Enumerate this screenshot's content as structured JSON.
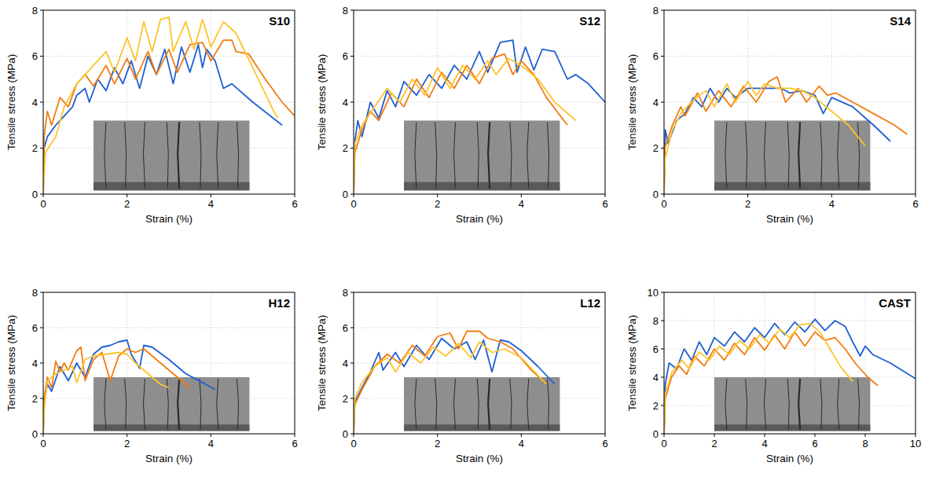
{
  "chart_data": [
    {
      "type": "line",
      "title": "S10",
      "x_label": "Strain (%)",
      "y_label": "Tensile stress (MPa)",
      "xlim": [
        0,
        6
      ],
      "ylim": [
        0,
        8
      ],
      "xticks": [
        0,
        2,
        4,
        6
      ],
      "yticks": [
        0,
        2,
        4,
        6,
        8
      ],
      "grid": true,
      "series": [
        {
          "color": "#1f5fd1",
          "x": [
            0,
            0.02,
            0.1,
            0.3,
            0.5,
            0.7,
            0.8,
            1,
            1.1,
            1.3,
            1.5,
            1.7,
            1.9,
            2.1,
            2.3,
            2.5,
            2.7,
            2.9,
            3.1,
            3.3,
            3.5,
            3.7,
            3.8,
            3.9,
            4.1,
            4.3,
            4.5,
            5,
            5.7
          ],
          "values": [
            0,
            2.0,
            2.5,
            3.0,
            3.4,
            3.8,
            4.3,
            4.6,
            4.0,
            5.0,
            4.5,
            5.5,
            4.8,
            5.8,
            4.6,
            6.0,
            5.2,
            6.3,
            4.8,
            6.4,
            5.3,
            6.5,
            5.5,
            6.3,
            5.8,
            4.6,
            4.8,
            4.0,
            3.0
          ]
        },
        {
          "color": "#f27b11",
          "x": [
            0,
            0.02,
            0.1,
            0.2,
            0.4,
            0.6,
            0.8,
            1,
            1.2,
            1.5,
            1.7,
            2,
            2.2,
            2.5,
            2.7,
            3,
            3.2,
            3.5,
            3.8,
            4,
            4.3,
            4.5,
            4.6,
            4.9,
            5.3,
            5.7,
            6
          ],
          "values": [
            0,
            2.5,
            3.6,
            3.0,
            4.2,
            3.8,
            4.8,
            5.2,
            4.7,
            5.6,
            4.8,
            5.9,
            5.0,
            6.2,
            5.2,
            6.3,
            5.3,
            6.5,
            6.6,
            5.8,
            6.7,
            6.7,
            6.2,
            6.1,
            5.0,
            4.0,
            3.4
          ]
        },
        {
          "color": "#fcc42a",
          "x": [
            0,
            0.05,
            0.3,
            0.5,
            0.8,
            1,
            1.3,
            1.5,
            1.7,
            2,
            2.2,
            2.4,
            2.6,
            2.8,
            3,
            3.1,
            3.4,
            3.6,
            3.8,
            4,
            4.3,
            4.6,
            5,
            5.5,
            5.6
          ],
          "values": [
            0,
            1.8,
            2.5,
            3.8,
            4.8,
            5.2,
            5.8,
            6.2,
            5.3,
            6.8,
            5.8,
            7.5,
            6.2,
            7.6,
            7.7,
            6.2,
            7.5,
            6.3,
            7.6,
            6.4,
            7.5,
            7.0,
            5.5,
            3.6,
            3.3
          ]
        }
      ]
    },
    {
      "type": "line",
      "title": "S12",
      "x_label": "Strain (%)",
      "y_label": "Tensile stress (MPa)",
      "xlim": [
        0,
        6
      ],
      "ylim": [
        0,
        8
      ],
      "xticks": [
        0,
        2,
        4,
        6
      ],
      "yticks": [
        0,
        2,
        4,
        6,
        8
      ],
      "grid": true,
      "series": [
        {
          "color": "#1f5fd1",
          "x": [
            0,
            0.03,
            0.1,
            0.2,
            0.4,
            0.6,
            0.8,
            1,
            1.2,
            1.5,
            1.8,
            2.1,
            2.4,
            2.7,
            3,
            3.2,
            3.5,
            3.8,
            3.9,
            4.1,
            4.3,
            4.5,
            4.8,
            5.1,
            5.3,
            5.6,
            6
          ],
          "values": [
            0,
            2.3,
            3.2,
            2.5,
            4.0,
            3.3,
            4.5,
            3.8,
            4.9,
            4.3,
            5.2,
            4.6,
            5.6,
            5.0,
            6.2,
            5.3,
            6.6,
            6.7,
            5.3,
            6.4,
            5.4,
            6.3,
            6.2,
            5.0,
            5.2,
            4.8,
            4.0
          ]
        },
        {
          "color": "#f27b11",
          "x": [
            0,
            0.03,
            0.2,
            0.4,
            0.6,
            0.9,
            1.2,
            1.5,
            1.8,
            2.1,
            2.4,
            2.7,
            3,
            3.3,
            3.6,
            3.8,
            4,
            4.3,
            4.6,
            5.1
          ],
          "values": [
            0,
            1.8,
            2.8,
            3.6,
            3.2,
            4.4,
            3.8,
            5.0,
            4.2,
            5.3,
            4.6,
            5.6,
            4.8,
            5.9,
            6.1,
            5.2,
            5.8,
            5.2,
            4.2,
            3.0
          ]
        },
        {
          "color": "#fcc42a",
          "x": [
            0,
            0.03,
            0.2,
            0.5,
            0.8,
            1.1,
            1.4,
            1.7,
            2,
            2.3,
            2.6,
            2.9,
            3.2,
            3.4,
            3.7,
            4,
            4.4,
            4.8,
            5.3
          ],
          "values": [
            0,
            2.2,
            3.0,
            3.8,
            4.6,
            4.0,
            5.0,
            4.3,
            5.5,
            4.6,
            5.6,
            5.0,
            5.8,
            5.2,
            5.9,
            5.6,
            5.0,
            4.0,
            3.2
          ]
        }
      ]
    },
    {
      "type": "line",
      "title": "S14",
      "x_label": "Strain (%)",
      "y_label": "Tensile stress (MPa)",
      "xlim": [
        0,
        6
      ],
      "ylim": [
        0,
        8
      ],
      "xticks": [
        0,
        2,
        4,
        6
      ],
      "yticks": [
        0,
        2,
        4,
        6,
        8
      ],
      "grid": true,
      "series": [
        {
          "color": "#1f5fd1",
          "x": [
            0,
            0.03,
            0.1,
            0.3,
            0.5,
            0.7,
            0.9,
            1.1,
            1.3,
            1.5,
            1.7,
            2,
            2.4,
            2.8,
            3,
            3.3,
            3.6,
            3.8,
            4,
            4.5,
            5,
            5.4
          ],
          "values": [
            0,
            2.8,
            2.2,
            3.2,
            3.5,
            4.2,
            3.8,
            4.6,
            4.0,
            4.6,
            4.2,
            4.6,
            4.6,
            4.6,
            4.4,
            4.5,
            4.3,
            3.5,
            4.2,
            3.8,
            3.0,
            2.3
          ]
        },
        {
          "color": "#f27b11",
          "x": [
            0,
            0.02,
            0.2,
            0.4,
            0.5,
            0.8,
            1,
            1.3,
            1.6,
            1.9,
            2.2,
            2.5,
            2.7,
            2.9,
            3.2,
            3.4,
            3.7,
            3.9,
            4.1,
            4.5,
            5,
            5.5,
            5.8
          ],
          "values": [
            0,
            2.0,
            3.0,
            3.8,
            3.4,
            4.4,
            3.6,
            4.5,
            3.8,
            4.7,
            4.0,
            4.9,
            5.1,
            4.0,
            4.6,
            4.0,
            4.7,
            4.3,
            4.4,
            4.0,
            3.5,
            3.0,
            2.6
          ]
        },
        {
          "color": "#fcc42a",
          "x": [
            0,
            0.02,
            0.2,
            0.4,
            0.7,
            1,
            1.2,
            1.5,
            1.7,
            2,
            2.2,
            2.4,
            2.7,
            3,
            3.3,
            3.6,
            4,
            4.4,
            4.8
          ],
          "values": [
            0,
            1.5,
            2.8,
            3.5,
            4.1,
            4.5,
            3.8,
            4.8,
            4.0,
            4.9,
            4.3,
            4.8,
            4.6,
            4.6,
            4.5,
            4.2,
            3.6,
            3.0,
            2.1
          ]
        }
      ]
    },
    {
      "type": "line",
      "title": "H12",
      "x_label": "Strain (%)",
      "y_label": "Tensile stress (MPa)",
      "xlim": [
        0,
        6
      ],
      "ylim": [
        0,
        8
      ],
      "xticks": [
        0,
        2,
        4,
        6
      ],
      "yticks": [
        0,
        2,
        4,
        6,
        8
      ],
      "grid": true,
      "series": [
        {
          "color": "#1f5fd1",
          "x": [
            0,
            0.03,
            0.1,
            0.2,
            0.4,
            0.6,
            0.8,
            1,
            1.2,
            1.4,
            1.6,
            1.8,
            2,
            2.1,
            2.3,
            2.4,
            2.6,
            3,
            3.4,
            3.8,
            4.1
          ],
          "values": [
            0,
            2.0,
            2.8,
            2.4,
            3.8,
            3.0,
            4.0,
            3.2,
            4.5,
            4.9,
            5.0,
            5.2,
            5.3,
            4.5,
            3.7,
            5.0,
            4.9,
            4.2,
            3.4,
            2.9,
            2.5
          ]
        },
        {
          "color": "#f27b11",
          "x": [
            0,
            0.02,
            0.1,
            0.2,
            0.3,
            0.4,
            0.5,
            0.6,
            0.8,
            0.9,
            1,
            1.2,
            1.4,
            1.6,
            1.8,
            2,
            2.2,
            2.4,
            2.6,
            3,
            3.5
          ],
          "values": [
            0,
            2.0,
            3.2,
            2.6,
            4.1,
            3.5,
            4.0,
            3.6,
            4.7,
            4.9,
            3.0,
            4.2,
            4.6,
            3.0,
            4.4,
            4.8,
            4.6,
            4.8,
            4.4,
            3.6,
            2.6
          ]
        },
        {
          "color": "#fcc42a",
          "x": [
            0,
            0.03,
            0.1,
            0.3,
            0.5,
            0.7,
            0.8,
            1,
            1.2,
            1.5,
            1.8,
            2,
            2.2,
            2.5,
            2.8,
            3
          ],
          "values": [
            0,
            1.6,
            3.0,
            3.4,
            3.6,
            3.8,
            2.9,
            4.2,
            4.4,
            4.5,
            4.6,
            4.5,
            4.0,
            3.4,
            2.8,
            2.6
          ]
        }
      ]
    },
    {
      "type": "line",
      "title": "L12",
      "x_label": "Strain (%)",
      "y_label": "Tensile stress (MPa)",
      "xlim": [
        0,
        6
      ],
      "ylim": [
        0,
        8
      ],
      "xticks": [
        0,
        2,
        4,
        6
      ],
      "yticks": [
        0,
        2,
        4,
        6,
        8
      ],
      "grid": true,
      "series": [
        {
          "color": "#1f5fd1",
          "x": [
            0,
            0.03,
            0.2,
            0.4,
            0.6,
            0.7,
            1,
            1.2,
            1.5,
            1.8,
            2.1,
            2.4,
            2.7,
            2.9,
            3.1,
            3.3,
            3.5,
            3.7,
            4,
            4.4,
            4.8
          ],
          "values": [
            0,
            1.8,
            2.6,
            3.5,
            4.6,
            3.6,
            4.6,
            3.8,
            5.0,
            4.2,
            5.4,
            4.8,
            5.2,
            4.2,
            5.3,
            3.5,
            5.3,
            5.2,
            4.7,
            3.8,
            2.8
          ]
        },
        {
          "color": "#f27b11",
          "x": [
            0,
            0.02,
            0.2,
            0.5,
            0.8,
            1.1,
            1.4,
            1.7,
            2,
            2.3,
            2.5,
            2.7,
            3,
            3.2,
            3.5,
            3.8,
            4.2,
            4.6
          ],
          "values": [
            0,
            1.6,
            2.5,
            3.8,
            4.5,
            4.0,
            5.0,
            4.4,
            5.5,
            5.7,
            4.8,
            5.8,
            5.8,
            5.4,
            5.2,
            4.8,
            3.7,
            2.8
          ]
        },
        {
          "color": "#fcc42a",
          "x": [
            0,
            0.03,
            0.2,
            0.5,
            0.8,
            1,
            1.3,
            1.6,
            1.9,
            2.2,
            2.5,
            2.8,
            3,
            3.3,
            3.6,
            4,
            4.4,
            4.6
          ],
          "values": [
            0,
            2.0,
            2.9,
            3.8,
            4.3,
            3.5,
            4.6,
            4.0,
            4.9,
            4.4,
            5.1,
            4.3,
            5.2,
            4.6,
            4.8,
            4.3,
            3.3,
            2.8
          ]
        }
      ]
    },
    {
      "type": "line",
      "title": "CAST",
      "x_label": "Strain (%)",
      "y_label": "Tensile stress (MPa)",
      "xlim": [
        0,
        10
      ],
      "ylim": [
        0,
        10
      ],
      "xticks": [
        0,
        2,
        4,
        6,
        8,
        10
      ],
      "yticks": [
        0,
        2,
        4,
        6,
        8,
        10
      ],
      "grid": true,
      "series": [
        {
          "color": "#1f5fd1",
          "x": [
            0,
            0.05,
            0.2,
            0.5,
            0.8,
            1.1,
            1.4,
            1.7,
            2,
            2.4,
            2.8,
            3.2,
            3.6,
            4,
            4.4,
            4.8,
            5.2,
            5.6,
            6,
            6.4,
            6.8,
            7.2,
            7.5,
            7.8,
            8,
            8.3,
            9,
            10
          ],
          "values": [
            0,
            3.5,
            5.0,
            4.6,
            6.0,
            5.2,
            6.5,
            5.6,
            6.8,
            6.2,
            7.2,
            6.5,
            7.5,
            6.8,
            7.8,
            7.0,
            7.9,
            7.2,
            8.1,
            7.3,
            8.0,
            7.6,
            6.5,
            5.5,
            6.2,
            5.6,
            5.0,
            3.9
          ]
        },
        {
          "color": "#f27b11",
          "x": [
            0,
            0.05,
            0.3,
            0.6,
            0.9,
            1.2,
            1.6,
            2,
            2.4,
            2.8,
            3.2,
            3.6,
            4,
            4.4,
            4.8,
            5.2,
            5.6,
            6,
            6.4,
            6.8,
            7.2,
            7.6,
            8.1,
            8.5
          ],
          "values": [
            0,
            2.5,
            4.0,
            4.8,
            4.2,
            5.5,
            4.8,
            6.0,
            5.2,
            6.4,
            5.6,
            6.8,
            5.9,
            7.0,
            6.0,
            7.2,
            6.2,
            7.2,
            6.6,
            6.8,
            6.0,
            5.0,
            4.0,
            3.4
          ]
        },
        {
          "color": "#fcc42a",
          "x": [
            0,
            0.05,
            0.3,
            0.7,
            1,
            1.4,
            1.8,
            2.2,
            2.6,
            3,
            3.4,
            3.8,
            4.2,
            4.6,
            5,
            5.4,
            5.8,
            6.2,
            6.6,
            7,
            7.5
          ],
          "values": [
            0,
            2.8,
            4.3,
            5.2,
            4.6,
            5.8,
            5.2,
            6.2,
            5.6,
            6.6,
            6.0,
            7.0,
            6.4,
            7.4,
            6.8,
            7.7,
            7.8,
            7.2,
            6.0,
            4.8,
            3.7
          ]
        }
      ]
    }
  ]
}
